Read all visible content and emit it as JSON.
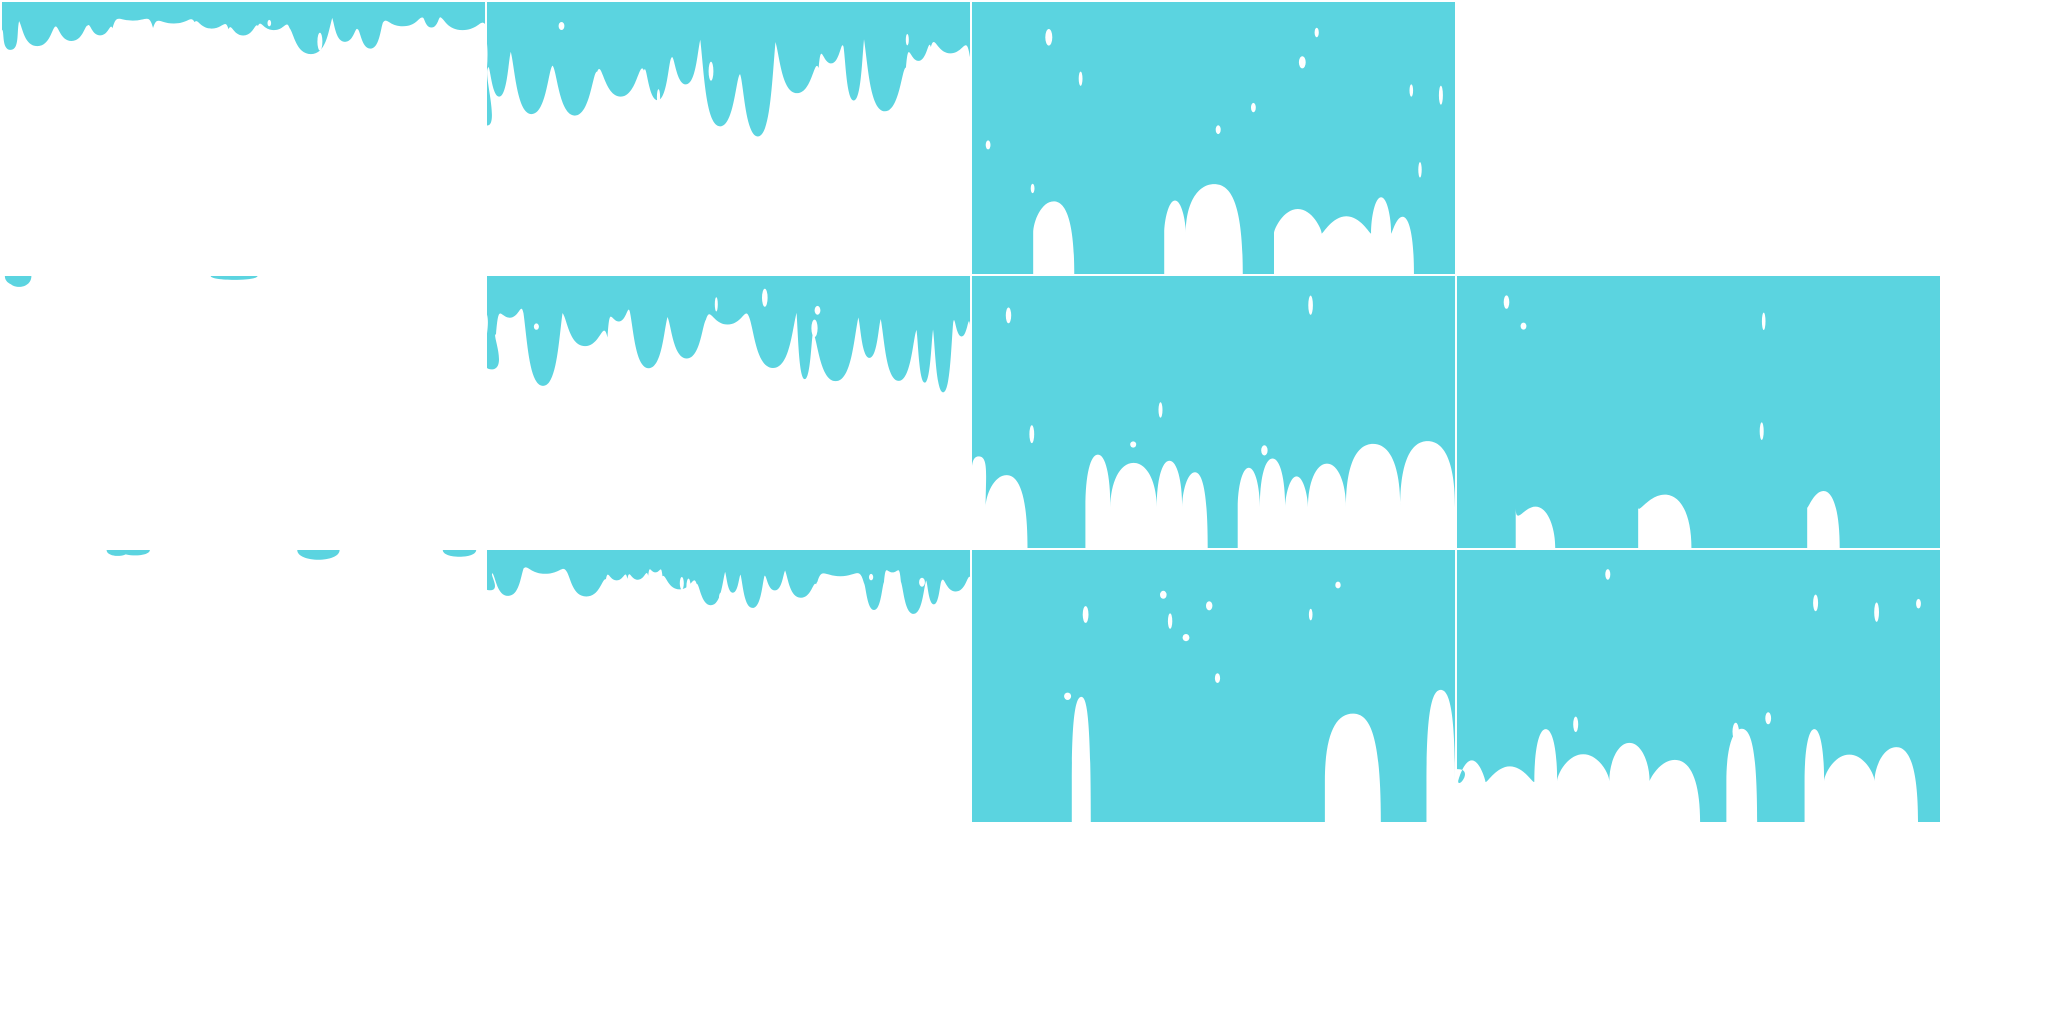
{
  "sheet": {
    "title": "",
    "columns": 4,
    "rows": 3,
    "background": "#ffffff",
    "slime_color": "#5bd4e0",
    "frames": [
      {
        "id": "frame-1",
        "fill_level": 0.18,
        "variant": "drip"
      },
      {
        "id": "frame-2",
        "fill_level": 0.45,
        "variant": "drip"
      },
      {
        "id": "frame-3",
        "fill_level": 0.88,
        "variant": "pool"
      },
      {
        "id": "frame-4",
        "fill_level": 0.0,
        "variant": "empty"
      },
      {
        "id": "frame-5",
        "fill_level": 0.05,
        "variant": "residue"
      },
      {
        "id": "frame-6",
        "fill_level": 0.4,
        "variant": "drip"
      },
      {
        "id": "frame-7",
        "fill_level": 0.82,
        "variant": "pool"
      },
      {
        "id": "frame-8",
        "fill_level": 0.95,
        "variant": "full"
      },
      {
        "id": "frame-9",
        "fill_level": 0.02,
        "variant": "residue"
      },
      {
        "id": "frame-10",
        "fill_level": 0.22,
        "variant": "drip"
      },
      {
        "id": "frame-11",
        "fill_level": 0.7,
        "variant": "pool"
      },
      {
        "id": "frame-12",
        "fill_level": 0.88,
        "variant": "pool"
      }
    ]
  }
}
